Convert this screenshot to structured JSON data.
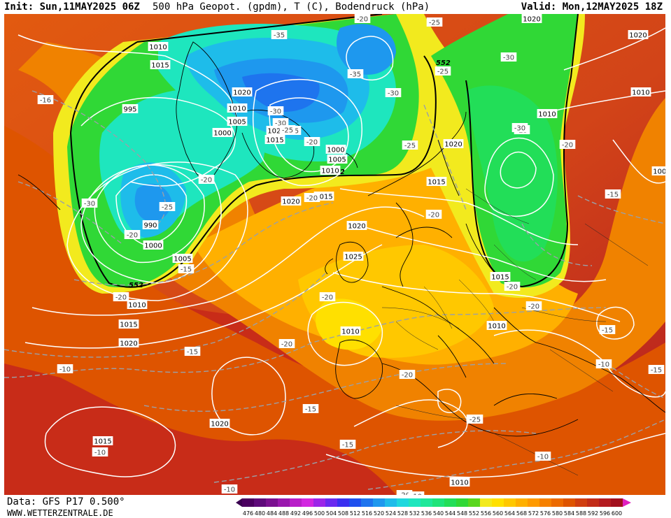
{
  "header": {
    "init_label": "Init: Sun,11MAY2025 06Z",
    "title": "500 hPa Geopot. (gpdm), T (C), Bodendruck (hPa)",
    "valid_label": "Valid: Mon,12MAY2025 18Z"
  },
  "footer": {
    "data_source": "Data: GFS P17 0.500°",
    "website": "WWW.WETTERZENTRALE.DE"
  },
  "legend": {
    "ticks": [
      "476",
      "480",
      "484",
      "488",
      "492",
      "496",
      "500",
      "504",
      "508",
      "512",
      "516",
      "520",
      "524",
      "528",
      "532",
      "536",
      "540",
      "544",
      "548",
      "552",
      "556",
      "560",
      "564",
      "568",
      "572",
      "576",
      "580",
      "584",
      "588",
      "592",
      "596",
      "600"
    ],
    "colors": [
      "#4a0060",
      "#5e0a7a",
      "#7a1090",
      "#9a18ae",
      "#b81ec8",
      "#d227e0",
      "#9c26e8",
      "#6a2af0",
      "#3a30f0",
      "#1f50ee",
      "#1e74ee",
      "#1e98ee",
      "#1ebcea",
      "#1ed8de",
      "#1ee6be",
      "#1ee89a",
      "#1ee47a",
      "#22de58",
      "#30d836",
      "#5ad61e",
      "#f2ea1e",
      "#ffe000",
      "#ffc800",
      "#ffb000",
      "#ff9a00",
      "#f68000",
      "#ec6a00",
      "#de5400",
      "#d03e10",
      "#c22c18",
      "#b41c20",
      "#a2101e"
    ]
  },
  "map": {
    "geopotential_contour_labels": [
      "552",
      "552",
      "552"
    ],
    "pressure_labels": [
      "1010",
      "1015",
      "1020",
      "1010",
      "1005",
      "1000",
      "995",
      "1020",
      "1015",
      "1000",
      "1005",
      "1010",
      "1015",
      "1020",
      "990",
      "1000",
      "1005",
      "1010",
      "1015",
      "1020",
      "1020",
      "1015",
      "1010",
      "1020",
      "1025",
      "1010",
      "1020",
      "1015",
      "1020",
      "1010",
      "1010",
      "1015",
      "1020",
      "1010",
      "1000"
    ],
    "temperature_labels": [
      "-35",
      "-35",
      "-30",
      "-30",
      "-25",
      "-25",
      "-20",
      "-30",
      "-25",
      "-30",
      "-25",
      "-20",
      "-25",
      "-20",
      "-20",
      "-16",
      "-30",
      "-25",
      "-20",
      "-15",
      "-20",
      "-20",
      "-20",
      "-20",
      "-15",
      "-15",
      "-10",
      "-10",
      "-20",
      "-20",
      "-20",
      "-15",
      "-15",
      "-10",
      "-10",
      "-10",
      "-10",
      "-10",
      "-15",
      "-15",
      "-25",
      "-20",
      "-20",
      "-25",
      "-30"
    ]
  }
}
